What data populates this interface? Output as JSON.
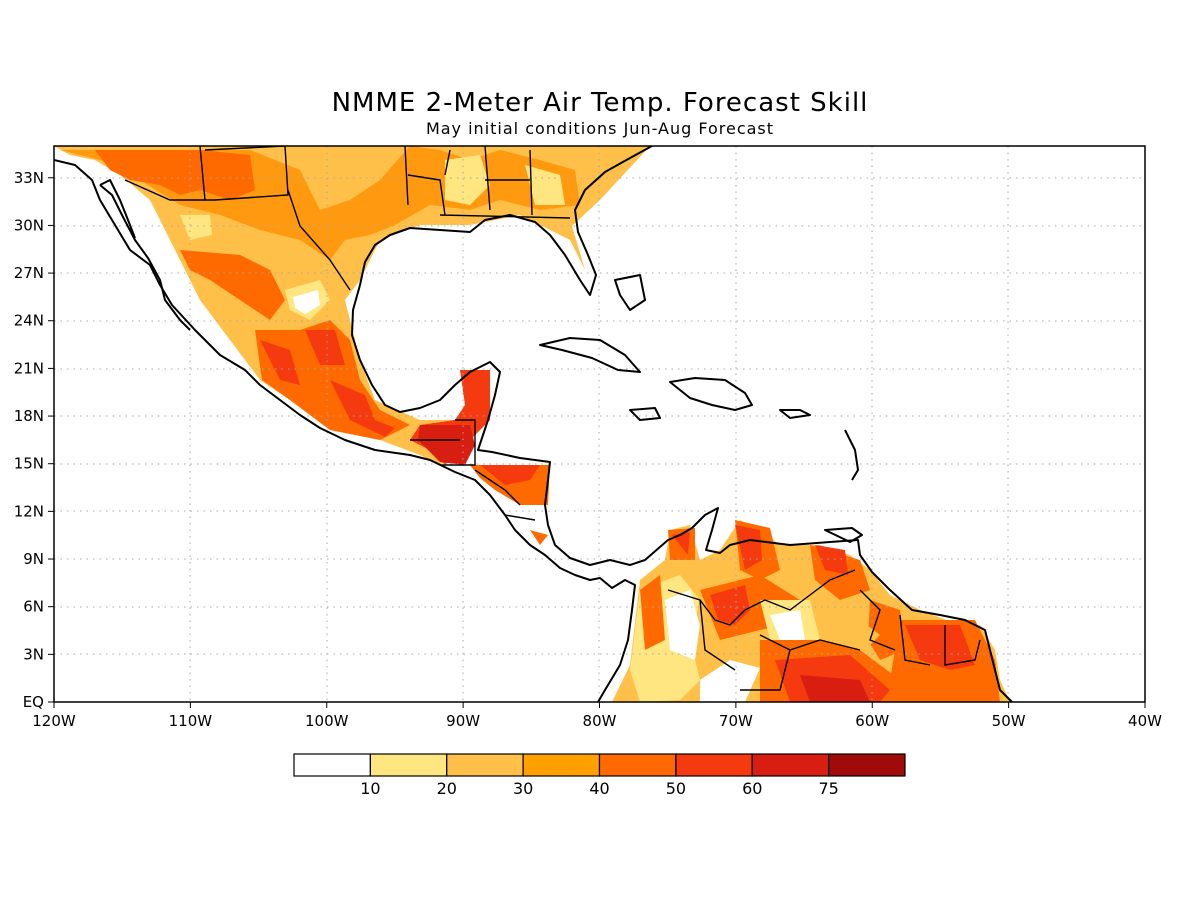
{
  "title": "NMME 2-Meter Air Temp. Forecast Skill",
  "subtitle": "May initial conditions  Jun-Aug Forecast",
  "map": {
    "lon_range": [
      -120,
      -40
    ],
    "lat_range": [
      0,
      35
    ],
    "lon_ticks": [
      {
        "value": -120,
        "label": "120W"
      },
      {
        "value": -110,
        "label": "110W"
      },
      {
        "value": -100,
        "label": "100W"
      },
      {
        "value": -90,
        "label": "90W"
      },
      {
        "value": -80,
        "label": "80W"
      },
      {
        "value": -70,
        "label": "70W"
      },
      {
        "value": -60,
        "label": "60W"
      },
      {
        "value": -50,
        "label": "50W"
      },
      {
        "value": -40,
        "label": "40W"
      }
    ],
    "lat_ticks": [
      {
        "value": 0,
        "label": "EQ"
      },
      {
        "value": 3,
        "label": "3N"
      },
      {
        "value": 6,
        "label": "6N"
      },
      {
        "value": 9,
        "label": "9N"
      },
      {
        "value": 12,
        "label": "12N"
      },
      {
        "value": 15,
        "label": "15N"
      },
      {
        "value": 18,
        "label": "18N"
      },
      {
        "value": 21,
        "label": "21N"
      },
      {
        "value": 24,
        "label": "24N"
      },
      {
        "value": 27,
        "label": "27N"
      },
      {
        "value": 30,
        "label": "30N"
      },
      {
        "value": 33,
        "label": "33N"
      }
    ],
    "grid": true
  },
  "colorbar": {
    "colors": [
      "#ffffff",
      "#ffe680",
      "#ffc04a",
      "#ffa000",
      "#ff6a00",
      "#f53a10",
      "#d81e10",
      "#a00a0a"
    ],
    "labels": [
      "10",
      "20",
      "30",
      "40",
      "50",
      "60",
      "75"
    ]
  }
}
